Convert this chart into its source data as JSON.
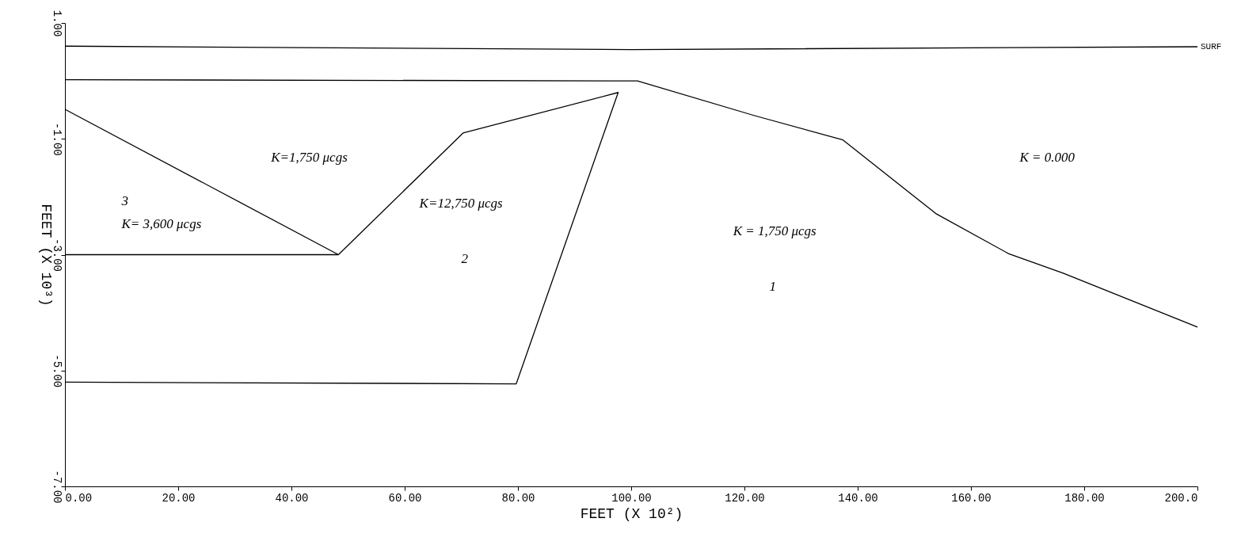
{
  "chart_data": {
    "type": "line",
    "xlabel": "FEET (X 10²)",
    "ylabel": "FEET (X 10³)",
    "xlim": [
      0,
      200
    ],
    "ylim": [
      -7,
      1
    ],
    "xticks": [
      {
        "value": 0,
        "label": "0.00"
      },
      {
        "value": 20,
        "label": "20.00"
      },
      {
        "value": 40,
        "label": "40.00"
      },
      {
        "value": 60,
        "label": "60.00"
      },
      {
        "value": 80,
        "label": "80.00"
      },
      {
        "value": 100,
        "label": "100.00"
      },
      {
        "value": 120,
        "label": "120.00"
      },
      {
        "value": 140,
        "label": "140.00"
      },
      {
        "value": 160,
        "label": "160.00"
      },
      {
        "value": 180,
        "label": "180.00"
      },
      {
        "value": 200,
        "label": "200.0"
      }
    ],
    "yticks": [
      {
        "value": 1,
        "label": "1.00"
      },
      {
        "value": -1,
        "label": "-1.00"
      },
      {
        "value": -3,
        "label": "-3.00"
      },
      {
        "value": -5,
        "label": "-5.00"
      },
      {
        "value": -7,
        "label": "-7.00"
      }
    ],
    "grid": false,
    "legend": false,
    "marker": "none",
    "line_style": "solid",
    "series": [
      {
        "color": "#000000",
        "x": [
          0,
          100,
          200
        ],
        "values": [
          0.6,
          0.54,
          0.59
        ]
      },
      {
        "color": "#000000",
        "x": [
          0,
          101.1,
          121.8,
          137.4,
          153.8,
          166.6,
          176.3,
          200
        ],
        "values": [
          0.02,
          0.0,
          -0.6,
          -1.02,
          -2.29,
          -2.98,
          -3.32,
          -4.25
        ]
      },
      {
        "color": "#000000",
        "x": [
          0,
          48.3,
          0
        ],
        "values": [
          -0.49,
          -3.0,
          -3.0
        ]
      },
      {
        "color": "#000000",
        "x": [
          48.3,
          70.3,
          97.7,
          79.7,
          0
        ],
        "values": [
          -3.0,
          -0.9,
          -0.2,
          -5.23,
          -5.2
        ]
      }
    ],
    "annotations": [
      "K=1,750 μcgs",
      "3",
      "K= 3,600 μcgs",
      "K=12,750 μcgs",
      "2",
      "K = 1,750 μcgs",
      "1",
      "K = 0.000",
      {
        "text": "SURF",
        "x": 200,
        "y": 0.59
      }
    ]
  }
}
